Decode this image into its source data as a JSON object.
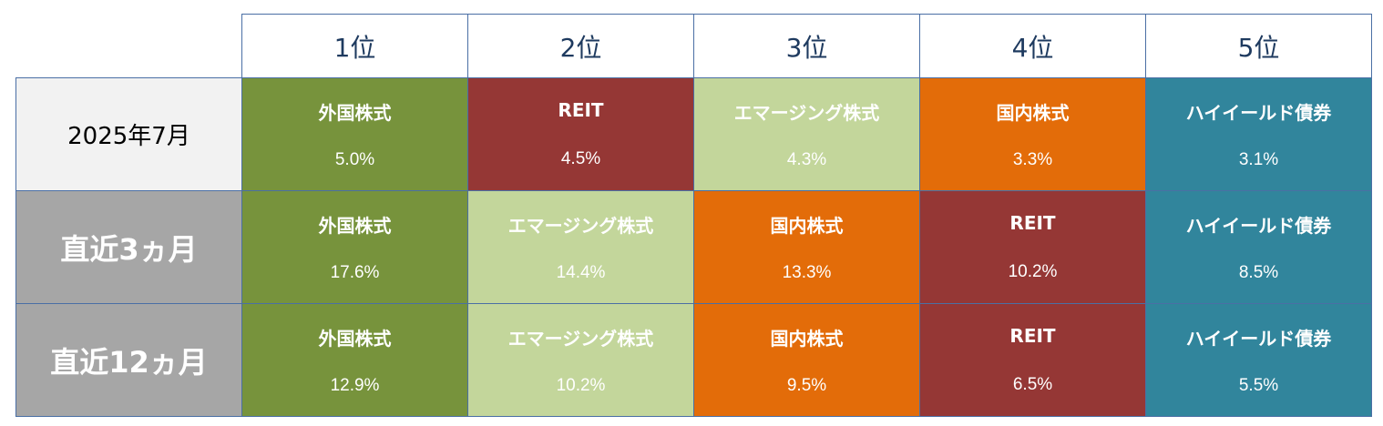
{
  "chart_data": {
    "type": "table",
    "columns": [
      "1位",
      "2位",
      "3位",
      "4位",
      "5位"
    ],
    "rows": [
      {
        "period": "2025年7月",
        "cells": [
          {
            "asset": "外国株式",
            "value": "5.0%"
          },
          {
            "asset": "REIT",
            "value": "4.5%"
          },
          {
            "asset": "エマージング株式",
            "value": "4.3%"
          },
          {
            "asset": "国内株式",
            "value": "3.3%"
          },
          {
            "asset": "ハイイールド債券",
            "value": "3.1%"
          }
        ]
      },
      {
        "period": "直近3ヵ月",
        "cells": [
          {
            "asset": "外国株式",
            "value": "17.6%"
          },
          {
            "asset": "エマージング株式",
            "value": "14.4%"
          },
          {
            "asset": "国内株式",
            "value": "13.3%"
          },
          {
            "asset": "REIT",
            "value": "10.2%"
          },
          {
            "asset": "ハイイールド債券",
            "value": "8.5%"
          }
        ]
      },
      {
        "period": "直近12ヵ月",
        "cells": [
          {
            "asset": "外国株式",
            "value": "12.9%"
          },
          {
            "asset": "エマージング株式",
            "value": "10.2%"
          },
          {
            "asset": "国内株式",
            "value": "9.5%"
          },
          {
            "asset": "REIT",
            "value": "6.5%"
          },
          {
            "asset": "ハイイールド債券",
            "value": "5.5%"
          }
        ]
      }
    ]
  },
  "asset_colors": {
    "外国株式": {
      "bg": "#77933c",
      "fg": "#ffffff"
    },
    "REIT": {
      "bg": "#953735",
      "fg": "#ffffff"
    },
    "エマージング株式": {
      "bg": "#c3d69b",
      "fg": "#ffffff"
    },
    "国内株式": {
      "bg": "#e36c09",
      "fg": "#ffffff"
    },
    "ハイイールド債券": {
      "bg": "#31859c",
      "fg": "#ffffff"
    }
  },
  "border_color": "#4a6fa5"
}
